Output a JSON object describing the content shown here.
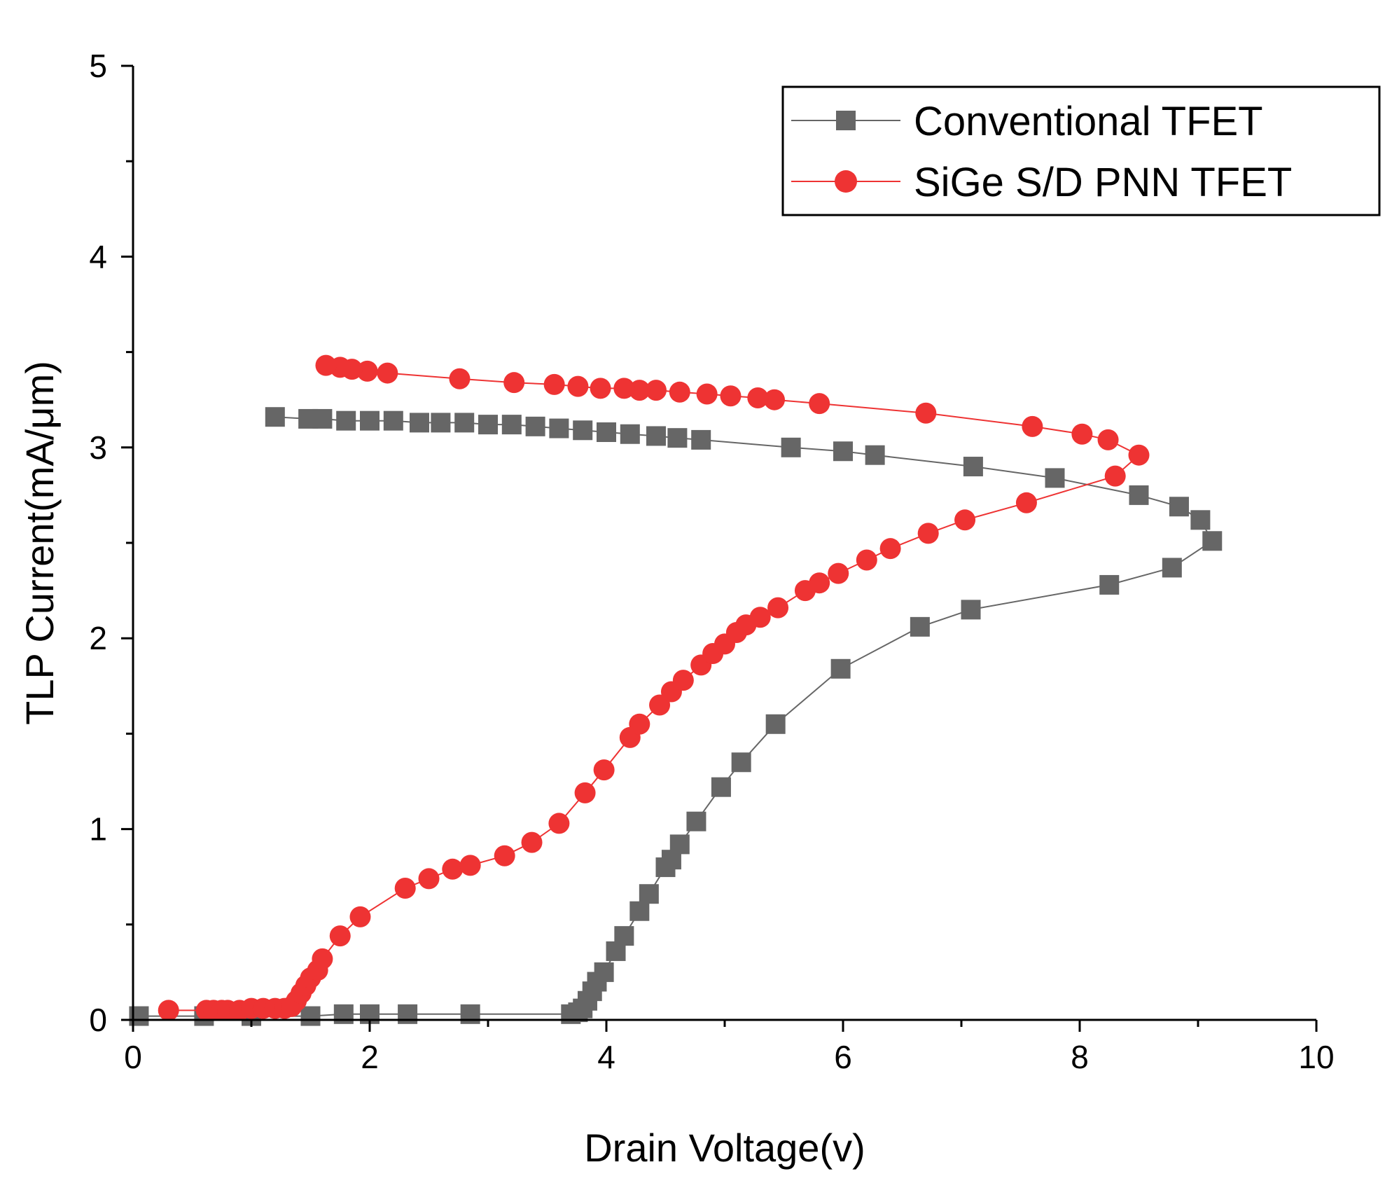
{
  "chart_data": {
    "type": "line",
    "title": "",
    "xlabel": "Drain Voltage(v)",
    "ylabel": "TLP Current(mA/μm)",
    "xlim": [
      0,
      10
    ],
    "ylim": [
      0,
      5
    ],
    "xticks": [
      0,
      2,
      4,
      6,
      8,
      10
    ],
    "yticks": [
      0,
      1,
      2,
      3,
      4,
      5
    ],
    "grid": false,
    "legend_position": "top-right",
    "series": [
      {
        "name": "Conventional TFET",
        "color": "#666666",
        "marker": "square",
        "points": [
          [
            0.05,
            0.02
          ],
          [
            0.6,
            0.02
          ],
          [
            1.0,
            0.02
          ],
          [
            1.5,
            0.02
          ],
          [
            1.78,
            0.03
          ],
          [
            2.0,
            0.03
          ],
          [
            2.32,
            0.03
          ],
          [
            2.85,
            0.03
          ],
          [
            3.7,
            0.03
          ],
          [
            3.76,
            0.04
          ],
          [
            3.8,
            0.06
          ],
          [
            3.84,
            0.1
          ],
          [
            3.88,
            0.15
          ],
          [
            3.92,
            0.2
          ],
          [
            3.98,
            0.25
          ],
          [
            4.08,
            0.36
          ],
          [
            4.15,
            0.44
          ],
          [
            4.28,
            0.57
          ],
          [
            4.36,
            0.66
          ],
          [
            4.5,
            0.8
          ],
          [
            4.55,
            0.84
          ],
          [
            4.62,
            0.92
          ],
          [
            4.76,
            1.04
          ],
          [
            4.97,
            1.22
          ],
          [
            5.14,
            1.35
          ],
          [
            5.43,
            1.55
          ],
          [
            5.98,
            1.84
          ],
          [
            6.65,
            2.06
          ],
          [
            7.08,
            2.15
          ],
          [
            8.25,
            2.28
          ],
          [
            8.78,
            2.37
          ],
          [
            9.12,
            2.51
          ],
          [
            9.02,
            2.62
          ],
          [
            8.84,
            2.69
          ],
          [
            8.5,
            2.75
          ],
          [
            7.79,
            2.84
          ],
          [
            7.1,
            2.9
          ],
          [
            6.27,
            2.96
          ],
          [
            6.0,
            2.98
          ],
          [
            5.56,
            3.0
          ],
          [
            4.8,
            3.04
          ],
          [
            4.6,
            3.05
          ],
          [
            4.42,
            3.06
          ],
          [
            4.2,
            3.07
          ],
          [
            4.0,
            3.08
          ],
          [
            3.8,
            3.09
          ],
          [
            3.6,
            3.1
          ],
          [
            3.4,
            3.11
          ],
          [
            3.2,
            3.12
          ],
          [
            3.0,
            3.12
          ],
          [
            2.8,
            3.13
          ],
          [
            2.6,
            3.13
          ],
          [
            2.42,
            3.13
          ],
          [
            2.2,
            3.14
          ],
          [
            2.0,
            3.14
          ],
          [
            1.8,
            3.14
          ],
          [
            1.6,
            3.15
          ],
          [
            1.48,
            3.15
          ],
          [
            1.2,
            3.16
          ]
        ]
      },
      {
        "name": "SiGe S/D PNN TFET",
        "color": "#ee3333",
        "marker": "circle",
        "points": [
          [
            0.3,
            0.05
          ],
          [
            0.62,
            0.05
          ],
          [
            0.68,
            0.05
          ],
          [
            0.75,
            0.05
          ],
          [
            0.8,
            0.05
          ],
          [
            0.9,
            0.05
          ],
          [
            1.0,
            0.06
          ],
          [
            1.1,
            0.06
          ],
          [
            1.2,
            0.06
          ],
          [
            1.28,
            0.06
          ],
          [
            1.34,
            0.07
          ],
          [
            1.38,
            0.1
          ],
          [
            1.42,
            0.14
          ],
          [
            1.46,
            0.18
          ],
          [
            1.5,
            0.22
          ],
          [
            1.56,
            0.26
          ],
          [
            1.6,
            0.32
          ],
          [
            1.75,
            0.44
          ],
          [
            1.92,
            0.54
          ],
          [
            2.3,
            0.69
          ],
          [
            2.5,
            0.74
          ],
          [
            2.7,
            0.79
          ],
          [
            2.85,
            0.81
          ],
          [
            3.14,
            0.86
          ],
          [
            3.37,
            0.93
          ],
          [
            3.6,
            1.03
          ],
          [
            3.82,
            1.19
          ],
          [
            3.98,
            1.31
          ],
          [
            4.2,
            1.48
          ],
          [
            4.28,
            1.55
          ],
          [
            4.45,
            1.65
          ],
          [
            4.55,
            1.72
          ],
          [
            4.65,
            1.78
          ],
          [
            4.8,
            1.86
          ],
          [
            4.9,
            1.92
          ],
          [
            5.0,
            1.97
          ],
          [
            5.1,
            2.03
          ],
          [
            5.18,
            2.07
          ],
          [
            5.3,
            2.11
          ],
          [
            5.45,
            2.16
          ],
          [
            5.68,
            2.25
          ],
          [
            5.8,
            2.29
          ],
          [
            5.96,
            2.34
          ],
          [
            6.2,
            2.41
          ],
          [
            6.4,
            2.47
          ],
          [
            6.72,
            2.55
          ],
          [
            7.03,
            2.62
          ],
          [
            7.55,
            2.71
          ],
          [
            8.3,
            2.85
          ],
          [
            8.5,
            2.96
          ],
          [
            8.24,
            3.04
          ],
          [
            8.02,
            3.07
          ],
          [
            7.6,
            3.11
          ],
          [
            6.7,
            3.18
          ],
          [
            5.8,
            3.23
          ],
          [
            5.42,
            3.25
          ],
          [
            5.28,
            3.26
          ],
          [
            5.05,
            3.27
          ],
          [
            4.85,
            3.28
          ],
          [
            4.62,
            3.29
          ],
          [
            4.42,
            3.3
          ],
          [
            4.28,
            3.3
          ],
          [
            4.15,
            3.31
          ],
          [
            3.95,
            3.31
          ],
          [
            3.76,
            3.32
          ],
          [
            3.56,
            3.33
          ],
          [
            3.22,
            3.34
          ],
          [
            2.76,
            3.36
          ],
          [
            2.15,
            3.39
          ],
          [
            1.98,
            3.4
          ],
          [
            1.85,
            3.41
          ],
          [
            1.75,
            3.42
          ],
          [
            1.63,
            3.43
          ]
        ]
      }
    ]
  }
}
